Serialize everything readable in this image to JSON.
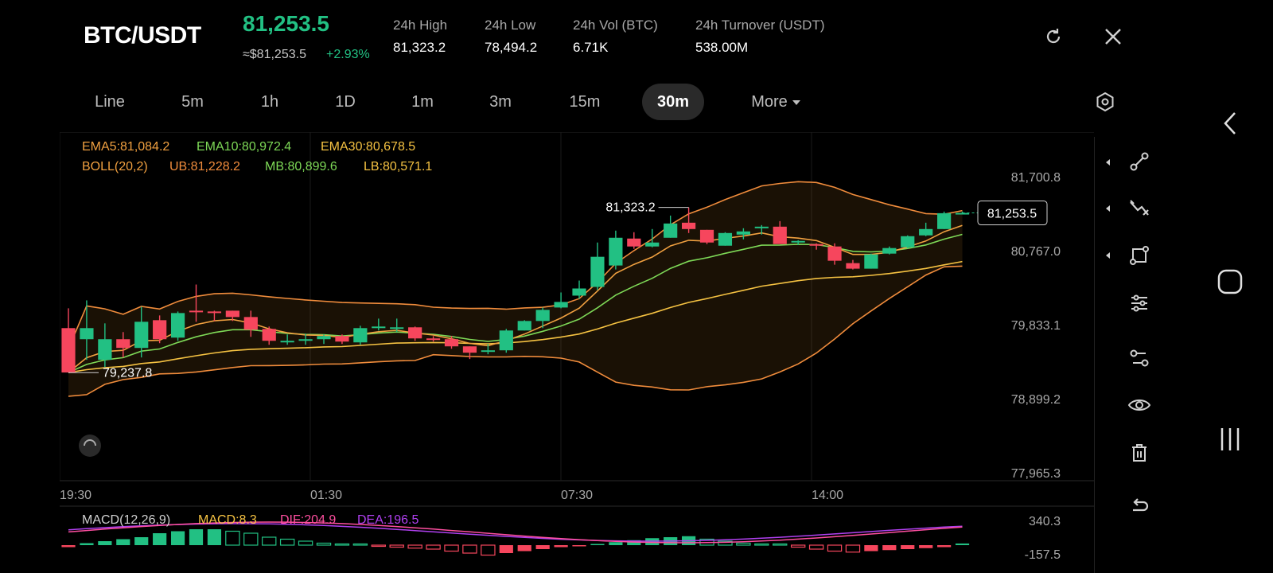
{
  "header": {
    "pair": "BTC/USDT",
    "price": "81,253.5",
    "approx_price": "≈$81,253.5",
    "change_pct": "+2.93%",
    "stats": [
      {
        "label": "24h   High",
        "value": "81,323.2"
      },
      {
        "label": "24h   Low",
        "value": "78,494.2"
      },
      {
        "label": "24h   Vol (BTC)",
        "value": "6.71K"
      },
      {
        "label": "24h   Turnover (USDT)",
        "value": "538.00M"
      }
    ],
    "icons": {
      "refresh": "refresh-icon",
      "close": "close-icon"
    }
  },
  "tabs": {
    "items": [
      "Line",
      "5m",
      "1h",
      "1D",
      "1m",
      "3m",
      "15m",
      "30m",
      "More"
    ],
    "active": "30m",
    "settings_icon": "settings-icon"
  },
  "indicators": {
    "ema5": "EMA5:81,084.2",
    "ema10": "EMA10:80,972.4",
    "ema30": "EMA30:80,678.5",
    "boll": "BOLL(20,2)",
    "ub": "UB:81,228.2",
    "mb": "MB:80,899.6",
    "lb": "LB:80,571.1"
  },
  "macd_labels": {
    "macd_name": "MACD(12,26,9)",
    "macd": "MACD:8.3",
    "dif": "DIF:204.9",
    "dea": "DEA:196.5",
    "max": "340.3",
    "min": "-157.5"
  },
  "colors": {
    "up": "#22c083",
    "down": "#f6465d",
    "ema5": "#f0a040",
    "ema10": "#7ed957",
    "ema30": "#f5c242",
    "boll": "#f08c3c",
    "dif": "#ff4fa0",
    "dea": "#b040f0",
    "price": "#22c083"
  },
  "chart_data": {
    "type": "candlestick",
    "y_ticks": [
      "81,700.8",
      "80,767.0",
      "79,833.1",
      "78,899.2",
      "77,965.3"
    ],
    "ylim": [
      77965.3,
      81700.8
    ],
    "x_ticks": [
      "19:30",
      "01:30",
      "07:30",
      "14:00"
    ],
    "current_price_label": "81,253.5",
    "high_annotation": "81,323.2",
    "low_annotation": "79,237.8",
    "candles": [
      [
        79800,
        79240,
        79260,
        80050
      ],
      [
        79660,
        79800,
        79400,
        80150
      ],
      [
        79400,
        79660,
        79310,
        79860
      ],
      [
        79660,
        79550,
        79430,
        79750
      ],
      [
        79550,
        79880,
        79430,
        80070
      ],
      [
        79900,
        79660,
        79610,
        79960
      ],
      [
        79680,
        79990,
        79640,
        80010
      ],
      [
        80020,
        80010,
        79880,
        80350
      ],
      [
        80010,
        79990,
        79890,
        80020
      ],
      [
        80020,
        79940,
        79890,
        80020
      ],
      [
        79940,
        79780,
        79690,
        80020
      ],
      [
        79790,
        79640,
        79590,
        79820
      ],
      [
        79630,
        79640,
        79590,
        79720
      ],
      [
        79650,
        79660,
        79590,
        79730
      ],
      [
        79660,
        79700,
        79600,
        79720
      ],
      [
        79700,
        79630,
        79600,
        79720
      ],
      [
        79620,
        79800,
        79590,
        79830
      ],
      [
        79800,
        79820,
        79770,
        79920
      ],
      [
        79810,
        79810,
        79750,
        79920
      ],
      [
        79810,
        79670,
        79640,
        79820
      ],
      [
        79670,
        79660,
        79630,
        79700
      ],
      [
        79660,
        79570,
        79540,
        79700
      ],
      [
        79570,
        79490,
        79410,
        79570
      ],
      [
        79500,
        79520,
        79470,
        79600
      ],
      [
        79520,
        79770,
        79490,
        79790
      ],
      [
        79770,
        79890,
        79770,
        79900
      ],
      [
        79890,
        80030,
        79800,
        80060
      ],
      [
        80060,
        80130,
        80050,
        80250
      ],
      [
        80210,
        80300,
        80170,
        80400
      ],
      [
        80320,
        80700,
        80280,
        80880
      ],
      [
        80590,
        80940,
        80540,
        81030
      ],
      [
        80930,
        80830,
        80800,
        81010
      ],
      [
        80830,
        80880,
        80820,
        81050
      ],
      [
        80940,
        81120,
        80940,
        81220
      ],
      [
        81130,
        81050,
        81000,
        81323.2
      ],
      [
        81040,
        80880,
        80860,
        81040
      ],
      [
        80840,
        81000,
        80840,
        81010
      ],
      [
        80980,
        81020,
        80920,
        81060
      ],
      [
        81080,
        81080,
        80980,
        81100
      ],
      [
        81080,
        80860,
        80870,
        81150
      ],
      [
        80900,
        80900,
        80850,
        80910
      ],
      [
        80860,
        80840,
        80790,
        80870
      ],
      [
        80830,
        80650,
        80600,
        80870
      ],
      [
        80620,
        80550,
        80540,
        80660
      ],
      [
        80550,
        80730,
        80550,
        80740
      ],
      [
        80740,
        80810,
        80730,
        80830
      ],
      [
        80820,
        80960,
        80810,
        80970
      ],
      [
        80970,
        81050,
        80960,
        81130
      ],
      [
        81050,
        81250,
        81050,
        81270
      ],
      [
        81250,
        81253.5,
        81240,
        81270
      ]
    ],
    "macd_bars": [
      -10,
      10,
      20,
      30,
      40,
      60,
      70,
      80,
      80,
      70,
      60,
      40,
      30,
      20,
      10,
      5,
      0,
      -5,
      -10,
      -15,
      -20,
      -30,
      -40,
      -50,
      -40,
      -30,
      -20,
      -10,
      -5,
      5,
      15,
      25,
      35,
      40,
      45,
      30,
      20,
      10,
      5,
      0,
      -10,
      -20,
      -30,
      -35,
      -30,
      -25,
      -20,
      -15,
      -10,
      8.3
    ]
  },
  "toolbar": [
    "trendline-icon",
    "crossline-icon",
    "shapes-icon",
    "sliders-icon",
    "settings-adjust-icon",
    "eye-icon",
    "trash-icon",
    "undo-icon"
  ],
  "sysnav": [
    "back-icon",
    "home-icon",
    "recents-icon"
  ]
}
